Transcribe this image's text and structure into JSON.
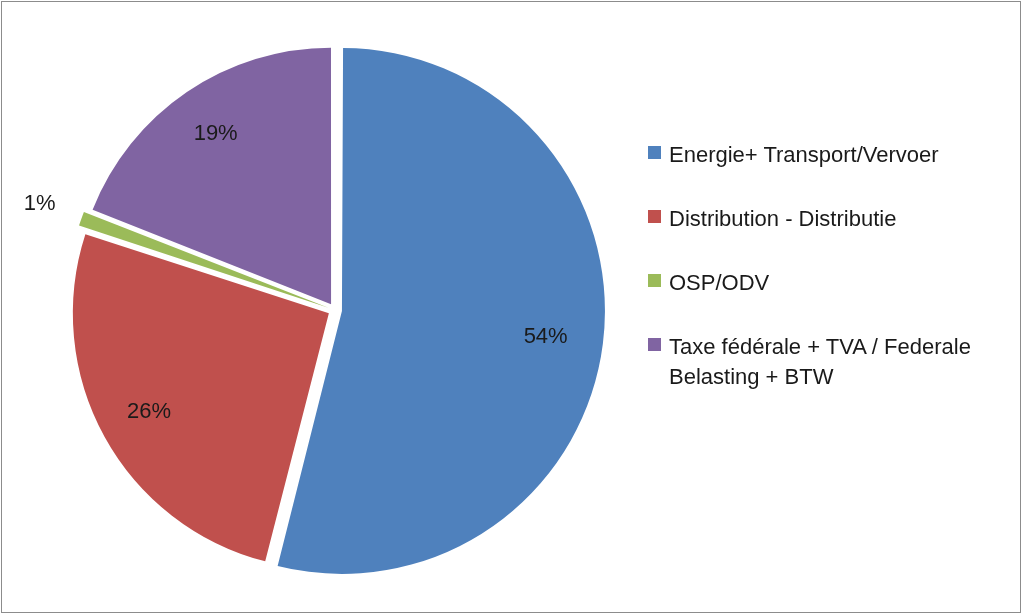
{
  "chart_data": {
    "type": "pie",
    "categories": [
      "Energie+ Transport/Vervoer",
      "Distribution - Distributie",
      "OSP/ODV",
      "Taxe fédérale + TVA / Federale Belasting + BTW"
    ],
    "values": [
      54,
      26,
      1,
      19
    ],
    "value_labels": [
      "54%",
      "26%",
      "1%",
      "19%"
    ],
    "colors": [
      "#4f81bd",
      "#c0504d",
      "#9bbb59",
      "#8064a2"
    ],
    "legend": "right",
    "data_labels": true
  }
}
